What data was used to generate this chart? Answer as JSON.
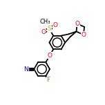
{
  "bg_color": "#ffffff",
  "bond_color": "#000000",
  "atom_colors": {
    "N": "#0000ff",
    "O": "#ff0000",
    "F": "#33aa33",
    "S": "#ddaa00",
    "C": "#000000"
  },
  "line_width": 1.3,
  "font_size_atom": 6.5,
  "figsize": [
    1.52,
    1.52
  ],
  "dpi": 100,
  "bl": 0.075
}
